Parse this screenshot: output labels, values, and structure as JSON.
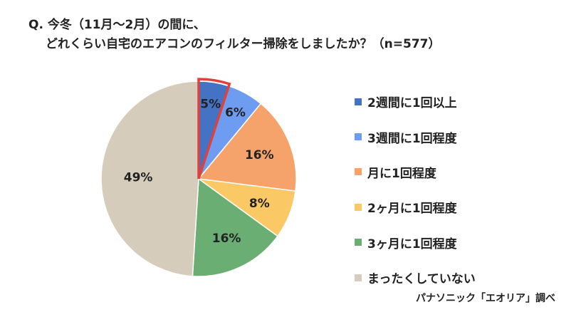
{
  "question": {
    "line1": "Q. 今冬（11月〜2月）の間に、",
    "line2": "どれくらい自宅のエアコンのフィルター掃除をしましたか？（n=577）"
  },
  "source": "パナソニック「エオリア」調べ",
  "chart_data": {
    "type": "pie",
    "title": "",
    "categories": [
      "2週間に1回以上",
      "3週間に1回程度",
      "月に1回程度",
      "2ヶ月に1回程度",
      "3ヶ月に1回程度",
      "まったくしていない"
    ],
    "values": [
      5,
      6,
      16,
      8,
      16,
      49
    ],
    "labels": [
      "5%",
      "6%",
      "16%",
      "8%",
      "16%",
      "49%"
    ],
    "colors": [
      "#4472C4",
      "#6E9CF0",
      "#F5A36A",
      "#FAC865",
      "#6AAE74",
      "#D5CCBC"
    ],
    "highlighted_index": 0,
    "highlight_color": "#E0413A",
    "start": "12 o'clock",
    "direction": "clockwise",
    "legend_position": "right"
  }
}
